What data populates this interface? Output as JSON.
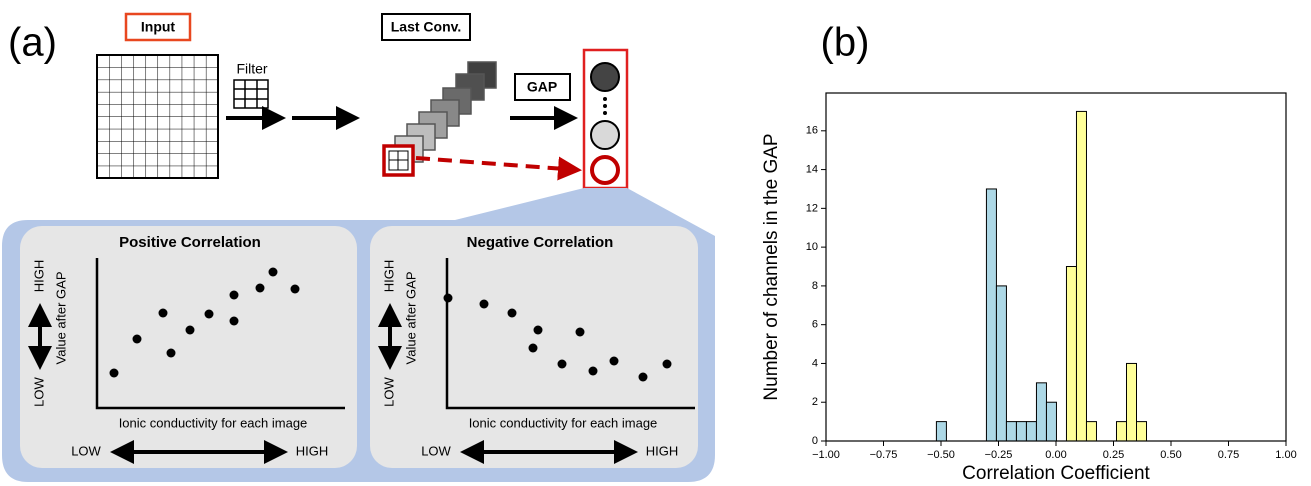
{
  "figure_a": {
    "panel_label": "(a)",
    "input": "Input",
    "filter": "Filter",
    "last_conv": "Last Conv.",
    "gap": "GAP",
    "panels": [
      {
        "title": "Positive Correlation",
        "y_high": "HIGH",
        "y_low": "LOW",
        "y_label": "Value after GAP",
        "x_label": "Ionic conductivity for each image",
        "x_low": "LOW",
        "x_high": "HIGH"
      },
      {
        "title": "Negative Correlation",
        "y_high": "HIGH",
        "y_low": "LOW",
        "y_label": "Value after GAP",
        "x_label": "Ionic conductivity for each image",
        "x_low": "LOW",
        "x_high": "HIGH"
      }
    ]
  },
  "chart_data": {
    "type": "histogram",
    "panel_label": "(b)",
    "x_label": "Correlation Coefficient",
    "y_label": "Number of channels in the GAP",
    "bins": [
      -0.52,
      -0.4765,
      -0.433,
      -0.3895,
      -0.346,
      -0.3025,
      -0.259,
      -0.2155,
      -0.172,
      -0.1285,
      -0.085,
      -0.0415,
      0.002,
      0.0455,
      0.089,
      0.1325,
      0.176,
      0.2195,
      0.263,
      0.3065,
      0.35,
      0.3935
    ],
    "series": [
      {
        "color": "#add8e6",
        "values": [
          1,
          0,
          0,
          0,
          0,
          13,
          8,
          1,
          1,
          1,
          3,
          2,
          0,
          0,
          0,
          0,
          0,
          0,
          0,
          0,
          0
        ]
      },
      {
        "color": "#ffff99",
        "values": [
          0,
          0,
          0,
          0,
          0,
          0,
          0,
          0,
          0,
          0,
          0,
          0,
          0,
          9,
          17,
          1,
          0,
          0,
          1,
          4,
          1
        ]
      }
    ],
    "xlim": [
      -1,
      1
    ],
    "ylim": [
      0,
      17.95
    ],
    "xticks": [
      {
        "value": -1,
        "label": "−1.00"
      },
      {
        "value": -0.75,
        "label": "−0.75"
      },
      {
        "value": -0.5,
        "label": "−0.50"
      },
      {
        "value": -0.25,
        "label": "−0.25"
      },
      {
        "value": 0,
        "label": "0.00"
      },
      {
        "value": 0.25,
        "label": "0.25"
      },
      {
        "value": 0.5,
        "label": "0.50"
      },
      {
        "value": 0.75,
        "label": "0.75"
      },
      {
        "value": 1,
        "label": "1.00"
      }
    ],
    "yticks": [
      0,
      2,
      4,
      6,
      8,
      10,
      12,
      14,
      16
    ]
  }
}
